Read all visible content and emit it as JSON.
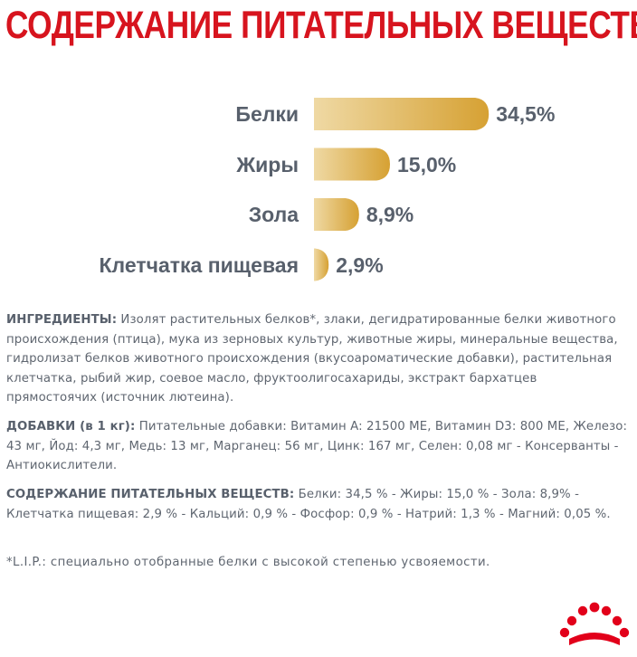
{
  "header": {
    "title": "СОДЕРЖАНИЕ ПИТАТЕЛЬНЫХ ВЕЩЕСТВ"
  },
  "chart_data": {
    "type": "bar",
    "orientation": "horizontal",
    "categories": [
      "Белки",
      "Жиры",
      "Зола",
      "Клетчатка пищевая"
    ],
    "values": [
      34.5,
      15.0,
      8.9,
      2.9
    ],
    "value_labels": [
      "34,5%",
      "15,0%",
      "8,9%",
      "2,9%"
    ],
    "unit": "%",
    "colors": {
      "bar_start": "#efd9a4",
      "bar_end": "#d6a133",
      "text": "#58606c"
    },
    "grid": false
  },
  "ingredients": {
    "label": "ИНГРЕДИЕНТЫ:",
    "text": " Изолят растительных белков*, злаки, дегидратированные белки животного происхождения (птица), мука из зерновых культур, животные жиры, минеральные вещества, гидролизат белков животного происхождения (вкусоароматические добавки), растительная клетчатка, рыбий жир, соевое масло, фруктоолигосахариды, экстракт бархатцев прямостоячих (источник лютеина)."
  },
  "additives": {
    "label": "ДОБАВКИ (в 1 кг):",
    "text": " Питательные добавки: Витамин A: 21500 ME, Витамин D3: 800 ME, Железо: 43 мг, Йод: 4,3 мг, Медь: 13 мг, Марганец: 56 мг, Цинк: 167 мг, Селен: 0,08 мг - Консерванты - Антиокислители."
  },
  "nutrients": {
    "label": "СОДЕРЖАНИЕ ПИТАТЕЛЬНЫХ ВЕЩЕСТВ:",
    "text": " Белки: 34,5 % - Жиры: 15,0 % - Зола: 8,9% - Клетчатка пищевая: 2,9 % - Кальций: 0,9 % - Фосфор: 0,9 % - Натрий: 1,3 % - Магний: 0,05 %."
  },
  "footnote": {
    "text": "*L.I.P.: специально отобранные белки с высокой степенью усвояемости."
  },
  "logo": {
    "icon": "royal-canin-crown-icon",
    "color": "#e2001a"
  }
}
